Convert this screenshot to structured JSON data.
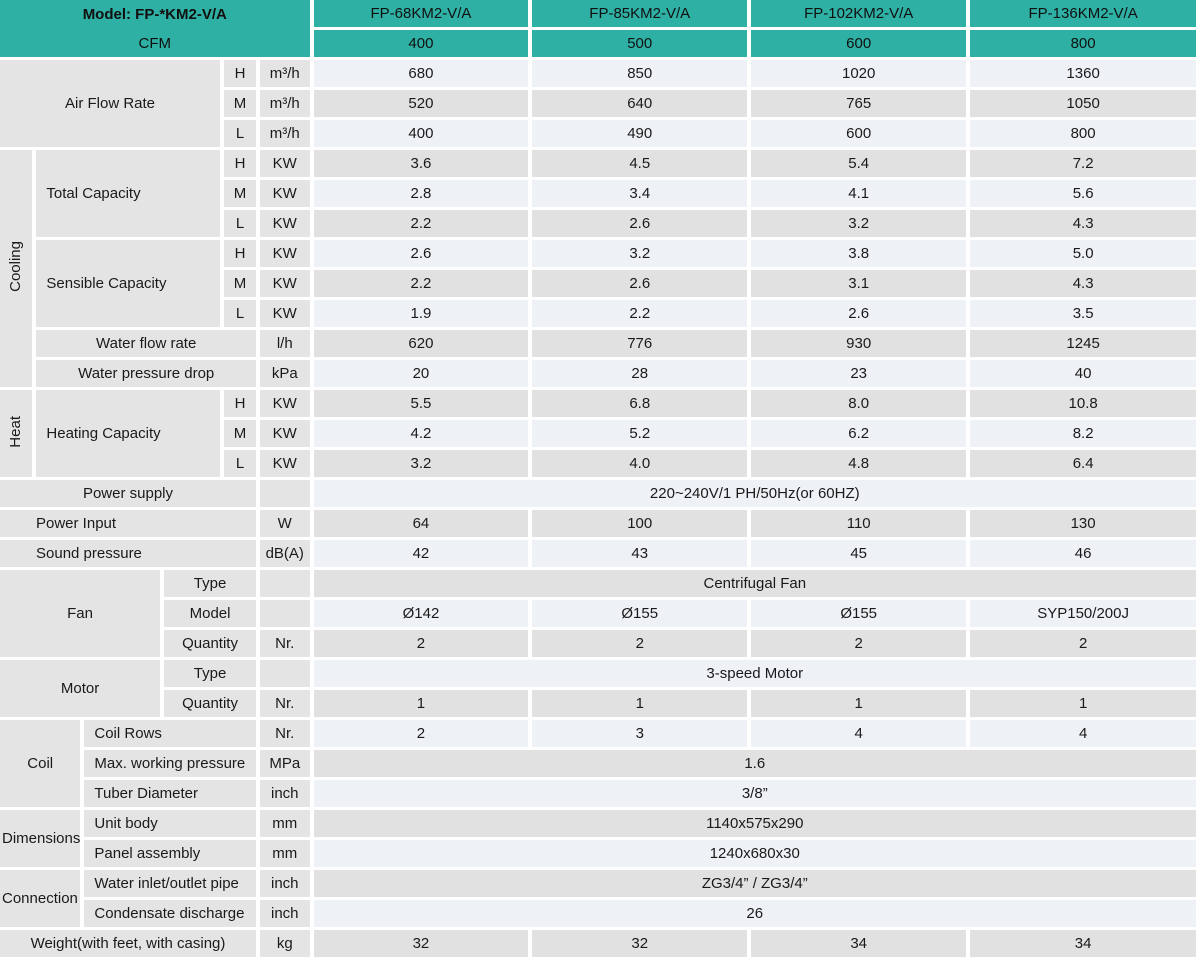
{
  "accent_color": "#2fb0a5",
  "row_colors": {
    "light": "#eef1f5",
    "gray": "#e1e1e1",
    "label_bg": "#e4e4e4"
  },
  "table": {
    "header": {
      "model_label": "Model: FP-*KM2-V/A",
      "cfm_label": "CFM",
      "models": [
        "FP-68KM2-V/A",
        "FP-85KM2-V/A",
        "FP-102KM2-V/A",
        "FP-136KM2-V/A"
      ],
      "cfm": [
        "400",
        "500",
        "600",
        "800"
      ]
    },
    "rows": [
      {
        "shade": "light",
        "cells": [
          {
            "t": "Air Flow Rate",
            "cs": 4,
            "rs": 3,
            "role": "label",
            "n": "air-flow-rate-label"
          },
          {
            "t": "H",
            "role": "sub"
          },
          {
            "t": "m³/h",
            "role": "unit"
          },
          {
            "t": "680",
            "role": "value"
          },
          {
            "t": "850",
            "role": "value"
          },
          {
            "t": "1020",
            "role": "value"
          },
          {
            "t": "1360",
            "role": "value"
          }
        ]
      },
      {
        "shade": "gray",
        "cells": [
          {
            "t": "M",
            "role": "sub"
          },
          {
            "t": "m³/h",
            "role": "unit"
          },
          {
            "t": "520",
            "role": "value"
          },
          {
            "t": "640",
            "role": "value"
          },
          {
            "t": "765",
            "role": "value"
          },
          {
            "t": "1050",
            "role": "value"
          }
        ]
      },
      {
        "shade": "light",
        "cells": [
          {
            "t": "L",
            "role": "sub"
          },
          {
            "t": "m³/h",
            "role": "unit"
          },
          {
            "t": "400",
            "role": "value"
          },
          {
            "t": "490",
            "role": "value"
          },
          {
            "t": "600",
            "role": "value"
          },
          {
            "t": "800",
            "role": "value"
          }
        ]
      },
      {
        "shade": "gray",
        "cells": [
          {
            "t": "Cooling",
            "rs": 8,
            "role": "group",
            "vert": true,
            "n": "cooling-section-label"
          },
          {
            "t": "Total Capacity",
            "cs": 3,
            "rs": 3,
            "role": "label",
            "align": "left",
            "n": "total-capacity-label"
          },
          {
            "t": "H",
            "role": "sub"
          },
          {
            "t": "KW",
            "role": "unit"
          },
          {
            "t": "3.6",
            "role": "value"
          },
          {
            "t": "4.5",
            "role": "value"
          },
          {
            "t": "5.4",
            "role": "value"
          },
          {
            "t": "7.2",
            "role": "value"
          }
        ]
      },
      {
        "shade": "light",
        "cells": [
          {
            "t": "M",
            "role": "sub"
          },
          {
            "t": "KW",
            "role": "unit"
          },
          {
            "t": "2.8",
            "role": "value"
          },
          {
            "t": "3.4",
            "role": "value"
          },
          {
            "t": "4.1",
            "role": "value"
          },
          {
            "t": "5.6",
            "role": "value"
          }
        ]
      },
      {
        "shade": "gray",
        "cells": [
          {
            "t": "L",
            "role": "sub"
          },
          {
            "t": "KW",
            "role": "unit"
          },
          {
            "t": "2.2",
            "role": "value"
          },
          {
            "t": "2.6",
            "role": "value"
          },
          {
            "t": "3.2",
            "role": "value"
          },
          {
            "t": "4.3",
            "role": "value"
          }
        ]
      },
      {
        "shade": "light",
        "cells": [
          {
            "t": "Sensible Capacity",
            "cs": 3,
            "rs": 3,
            "role": "label",
            "align": "left",
            "n": "sensible-capacity-label"
          },
          {
            "t": "H",
            "role": "sub"
          },
          {
            "t": "KW",
            "role": "unit"
          },
          {
            "t": "2.6",
            "role": "value"
          },
          {
            "t": "3.2",
            "role": "value"
          },
          {
            "t": "3.8",
            "role": "value"
          },
          {
            "t": "5.0",
            "role": "value"
          }
        ]
      },
      {
        "shade": "gray",
        "cells": [
          {
            "t": "M",
            "role": "sub"
          },
          {
            "t": "KW",
            "role": "unit"
          },
          {
            "t": "2.2",
            "role": "value"
          },
          {
            "t": "2.6",
            "role": "value"
          },
          {
            "t": "3.1",
            "role": "value"
          },
          {
            "t": "4.3",
            "role": "value"
          }
        ]
      },
      {
        "shade": "light",
        "cells": [
          {
            "t": "L",
            "role": "sub"
          },
          {
            "t": "KW",
            "role": "unit"
          },
          {
            "t": "1.9",
            "role": "value"
          },
          {
            "t": "2.2",
            "role": "value"
          },
          {
            "t": "2.6",
            "role": "value"
          },
          {
            "t": "3.5",
            "role": "value"
          }
        ]
      },
      {
        "shade": "gray",
        "cells": [
          {
            "t": "Water flow rate",
            "cs": 4,
            "role": "label",
            "n": "water-flow-rate-label"
          },
          {
            "t": "l/h",
            "role": "unit"
          },
          {
            "t": "620",
            "role": "value"
          },
          {
            "t": "776",
            "role": "value"
          },
          {
            "t": "930",
            "role": "value"
          },
          {
            "t": "1245",
            "role": "value"
          }
        ]
      },
      {
        "shade": "light",
        "cells": [
          {
            "t": "Water pressure drop",
            "cs": 4,
            "role": "label",
            "n": "water-pressure-drop-label"
          },
          {
            "t": "kPa",
            "role": "unit"
          },
          {
            "t": "20",
            "role": "value"
          },
          {
            "t": "28",
            "role": "value"
          },
          {
            "t": "23",
            "role": "value"
          },
          {
            "t": "40",
            "role": "value"
          }
        ]
      },
      {
        "shade": "gray",
        "cells": [
          {
            "t": "Heat",
            "rs": 3,
            "role": "group",
            "vert": true,
            "n": "heat-section-label"
          },
          {
            "t": "Heating Capacity",
            "cs": 3,
            "rs": 3,
            "role": "label",
            "align": "left",
            "n": "heating-capacity-label"
          },
          {
            "t": "H",
            "role": "sub"
          },
          {
            "t": "KW",
            "role": "unit"
          },
          {
            "t": "5.5",
            "role": "value"
          },
          {
            "t": "6.8",
            "role": "value"
          },
          {
            "t": "8.0",
            "role": "value"
          },
          {
            "t": "10.8",
            "role": "value"
          }
        ]
      },
      {
        "shade": "light",
        "cells": [
          {
            "t": "M",
            "role": "sub"
          },
          {
            "t": "KW",
            "role": "unit"
          },
          {
            "t": "4.2",
            "role": "value"
          },
          {
            "t": "5.2",
            "role": "value"
          },
          {
            "t": "6.2",
            "role": "value"
          },
          {
            "t": "8.2",
            "role": "value"
          }
        ]
      },
      {
        "shade": "gray",
        "cells": [
          {
            "t": "L",
            "role": "sub"
          },
          {
            "t": "KW",
            "role": "unit"
          },
          {
            "t": "3.2",
            "role": "value"
          },
          {
            "t": "4.0",
            "role": "value"
          },
          {
            "t": "4.8",
            "role": "value"
          },
          {
            "t": "6.4",
            "role": "value"
          }
        ]
      },
      {
        "shade": "light",
        "cells": [
          {
            "t": "Power supply",
            "cs": 5,
            "role": "label",
            "n": "power-supply-label"
          },
          {
            "t": "",
            "role": "unit"
          },
          {
            "t": "220~240V/1 PH/50Hz(or 60HZ)",
            "cs": 4,
            "role": "value",
            "n": "power-supply-value"
          }
        ]
      },
      {
        "shade": "gray",
        "cells": [
          {
            "t": "Power Input",
            "cs": 5,
            "role": "label",
            "align": "indent",
            "n": "power-input-label"
          },
          {
            "t": "W",
            "role": "unit"
          },
          {
            "t": "64",
            "role": "value"
          },
          {
            "t": "100",
            "role": "value"
          },
          {
            "t": "110",
            "role": "value"
          },
          {
            "t": "130",
            "role": "value"
          }
        ]
      },
      {
        "shade": "light",
        "cells": [
          {
            "t": "Sound pressure",
            "cs": 5,
            "role": "label",
            "align": "indent",
            "n": "sound-pressure-label"
          },
          {
            "t": "dB(A)",
            "role": "unit"
          },
          {
            "t": "42",
            "role": "value"
          },
          {
            "t": "43",
            "role": "value"
          },
          {
            "t": "45",
            "role": "value"
          },
          {
            "t": "46",
            "role": "value"
          }
        ]
      },
      {
        "shade": "gray",
        "cells": [
          {
            "t": "Fan",
            "cs": 3,
            "rs": 3,
            "role": "group",
            "n": "fan-section-label"
          },
          {
            "t": "Type",
            "cs": 2,
            "role": "label",
            "n": "fan-type-label"
          },
          {
            "t": "",
            "role": "unit"
          },
          {
            "t": "Centrifugal Fan",
            "cs": 4,
            "role": "value",
            "n": "fan-type-value"
          }
        ]
      },
      {
        "shade": "light",
        "cells": [
          {
            "t": "Model",
            "cs": 2,
            "role": "label",
            "n": "fan-model-label"
          },
          {
            "t": "",
            "role": "unit"
          },
          {
            "t": "Ø142",
            "role": "value"
          },
          {
            "t": "Ø155",
            "role": "value"
          },
          {
            "t": "Ø155",
            "role": "value"
          },
          {
            "t": "SYP150/200J",
            "role": "value"
          }
        ]
      },
      {
        "shade": "gray",
        "cells": [
          {
            "t": "Quantity",
            "cs": 2,
            "role": "label",
            "n": "fan-quantity-label"
          },
          {
            "t": "Nr.",
            "role": "unit"
          },
          {
            "t": "2",
            "role": "value"
          },
          {
            "t": "2",
            "role": "value"
          },
          {
            "t": "2",
            "role": "value"
          },
          {
            "t": "2",
            "role": "value"
          }
        ]
      },
      {
        "shade": "light",
        "cells": [
          {
            "t": "Motor",
            "cs": 3,
            "rs": 2,
            "role": "group",
            "n": "motor-section-label"
          },
          {
            "t": "Type",
            "cs": 2,
            "role": "label",
            "n": "motor-type-label"
          },
          {
            "t": "",
            "role": "unit"
          },
          {
            "t": "3-speed Motor",
            "cs": 4,
            "role": "value",
            "n": "motor-type-value"
          }
        ]
      },
      {
        "shade": "gray",
        "cells": [
          {
            "t": "Quantity",
            "cs": 2,
            "role": "label",
            "n": "motor-quantity-label"
          },
          {
            "t": "Nr.",
            "role": "unit"
          },
          {
            "t": "1",
            "role": "value"
          },
          {
            "t": "1",
            "role": "value"
          },
          {
            "t": "1",
            "role": "value"
          },
          {
            "t": "1",
            "role": "value"
          }
        ]
      },
      {
        "shade": "light",
        "cells": [
          {
            "t": "Coil",
            "cs": 2,
            "rs": 3,
            "role": "group",
            "n": "coil-section-label"
          },
          {
            "t": "Coil Rows",
            "cs": 3,
            "role": "label",
            "align": "left",
            "n": "coil-rows-label"
          },
          {
            "t": "Nr.",
            "role": "unit"
          },
          {
            "t": "2",
            "role": "value"
          },
          {
            "t": "3",
            "role": "value"
          },
          {
            "t": "4",
            "role": "value"
          },
          {
            "t": "4",
            "role": "value"
          }
        ]
      },
      {
        "shade": "gray",
        "cells": [
          {
            "t": "Max. working pressure",
            "cs": 3,
            "role": "label",
            "align": "left",
            "n": "max-working-pressure-label"
          },
          {
            "t": "MPa",
            "role": "unit"
          },
          {
            "t": "1.6",
            "cs": 4,
            "role": "value",
            "n": "max-working-pressure-value"
          }
        ]
      },
      {
        "shade": "light",
        "cells": [
          {
            "t": "Tuber Diameter",
            "cs": 3,
            "role": "label",
            "align": "left",
            "n": "tuber-diameter-label"
          },
          {
            "t": "inch",
            "role": "unit"
          },
          {
            "t": "3/8”",
            "cs": 4,
            "role": "value",
            "n": "tuber-diameter-value"
          }
        ]
      },
      {
        "shade": "gray",
        "cells": [
          {
            "t": "Dimensions",
            "cs": 2,
            "rs": 2,
            "role": "group",
            "align": "ov",
            "n": "dimensions-section-label"
          },
          {
            "t": "Unit body",
            "cs": 3,
            "role": "label",
            "align": "left",
            "n": "unit-body-label"
          },
          {
            "t": "mm",
            "role": "unit"
          },
          {
            "t": "1140x575x290",
            "cs": 4,
            "role": "value",
            "n": "unit-body-value"
          }
        ]
      },
      {
        "shade": "light",
        "cells": [
          {
            "t": "Panel assembly",
            "cs": 3,
            "role": "label",
            "align": "left",
            "n": "panel-assembly-label"
          },
          {
            "t": "mm",
            "role": "unit"
          },
          {
            "t": "1240x680x30",
            "cs": 4,
            "role": "value",
            "n": "panel-assembly-value"
          }
        ]
      },
      {
        "shade": "gray",
        "cells": [
          {
            "t": "Connection",
            "cs": 2,
            "rs": 2,
            "role": "group",
            "align": "ov",
            "n": "connection-section-label"
          },
          {
            "t": "Water inlet/outlet pipe",
            "cs": 3,
            "role": "label",
            "align": "left",
            "n": "water-inlet-outlet-pipe-label"
          },
          {
            "t": "inch",
            "role": "unit"
          },
          {
            "t": "ZG3/4” / ZG3/4”",
            "cs": 4,
            "role": "value",
            "n": "water-inlet-outlet-pipe-value"
          }
        ]
      },
      {
        "shade": "light",
        "cells": [
          {
            "t": "Condensate discharge",
            "cs": 3,
            "role": "label",
            "align": "left",
            "n": "condensate-discharge-label"
          },
          {
            "t": "inch",
            "role": "unit"
          },
          {
            "t": "26",
            "cs": 4,
            "role": "value",
            "n": "condensate-discharge-value"
          }
        ]
      },
      {
        "shade": "gray",
        "cells": [
          {
            "t": "Weight(with feet, with casing)",
            "cs": 5,
            "role": "label",
            "n": "weight-label"
          },
          {
            "t": "kg",
            "role": "unit"
          },
          {
            "t": "32",
            "role": "value"
          },
          {
            "t": "32",
            "role": "value"
          },
          {
            "t": "34",
            "role": "value"
          },
          {
            "t": "34",
            "role": "value"
          }
        ]
      }
    ]
  }
}
